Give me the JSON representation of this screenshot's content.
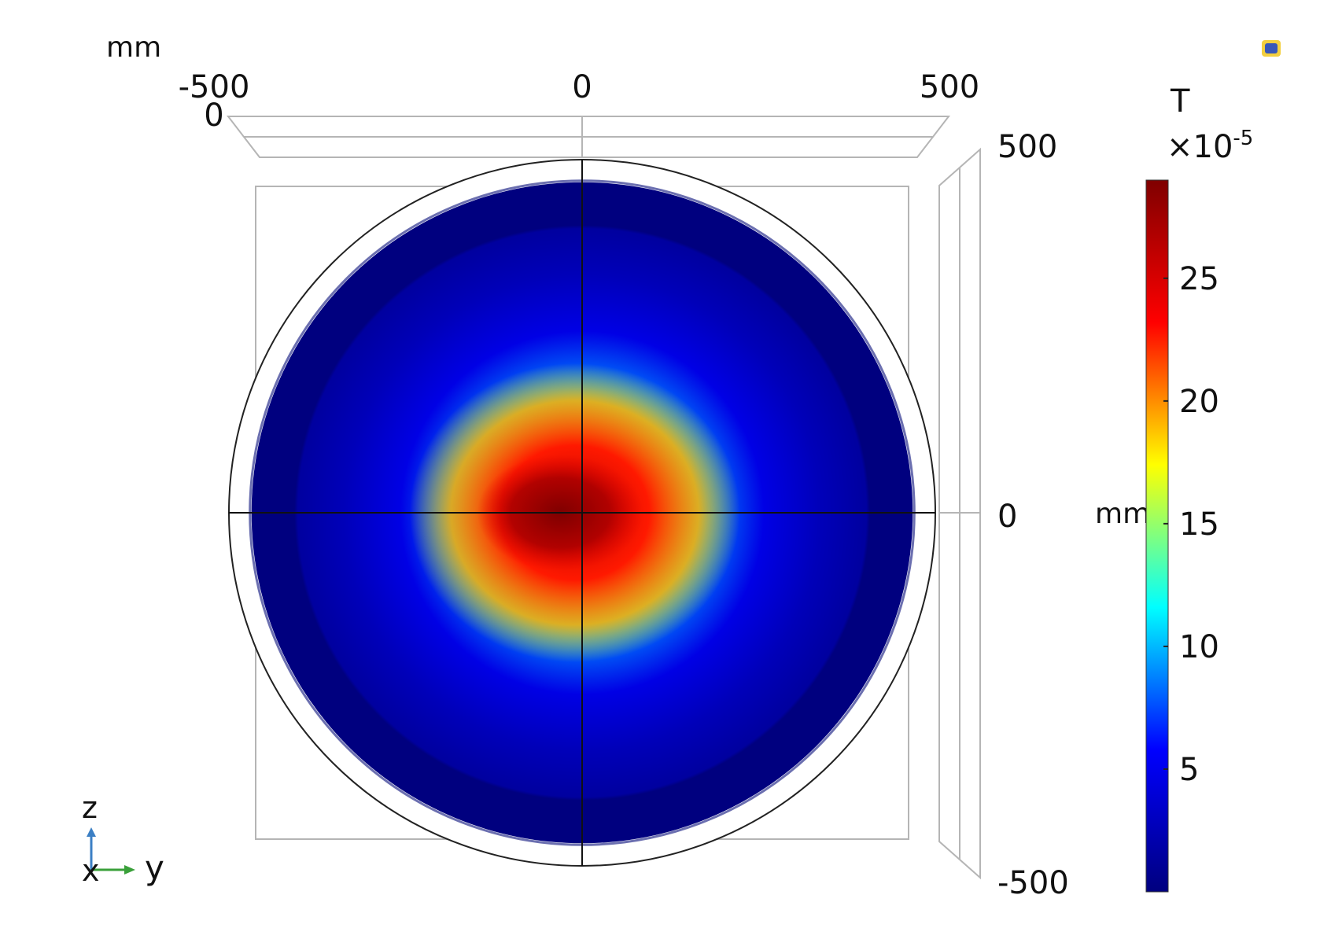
{
  "chart_data": {
    "type": "heatmap",
    "title": "",
    "quantity_unit": "T",
    "colorbar_multiplier_base": "×10",
    "colorbar_multiplier_exp": "-5",
    "colorbar_ticks": [
      5,
      10,
      15,
      20,
      25
    ],
    "colorbar_range": [
      0,
      29
    ],
    "colormap": [
      "#00007f",
      "#0000ff",
      "#00ffff",
      "#ffff00",
      "#ff0000",
      "#7f0000"
    ],
    "axes": {
      "unit": "mm",
      "horizontal_ticks": [
        "-500",
        "0",
        "500"
      ],
      "vertical_ticks": [
        "500",
        "0",
        "-500"
      ],
      "horizontal_range": [
        -500,
        500
      ],
      "vertical_range": [
        -500,
        500
      ],
      "depth_tick": "0"
    },
    "field": {
      "domain_radius_mm": 450,
      "outer_circle_radius_mm": 500,
      "peak_value": 29,
      "peak_center_mm": [
        -30,
        0
      ],
      "hot_zone_semi_axes_mm": [
        145,
        110
      ]
    },
    "triad": {
      "up": "z",
      "right": "y",
      "out": "x"
    }
  }
}
